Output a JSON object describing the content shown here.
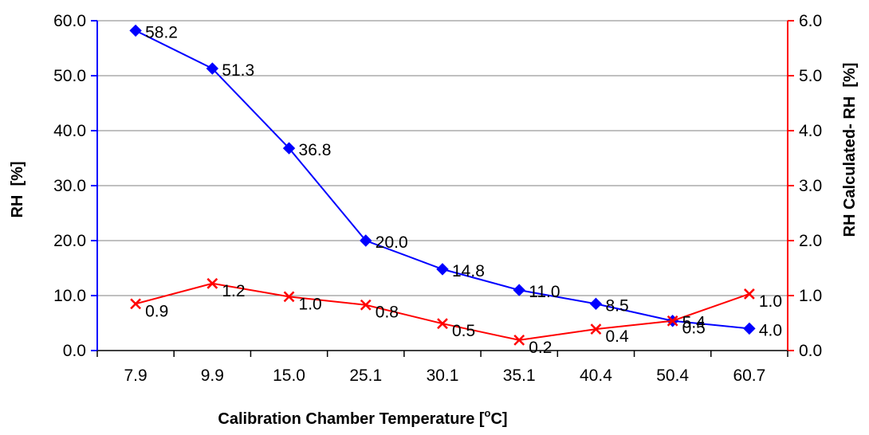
{
  "chart_data": {
    "type": "line",
    "categories": [
      "7.9",
      "9.9",
      "15.0",
      "25.1",
      "30.1",
      "35.1",
      "40.4",
      "50.4",
      "60.7"
    ],
    "series": [
      {
        "axis": "left",
        "color": "#0000ff",
        "marker": "diamond",
        "values": [
          58.2,
          51.3,
          36.8,
          20.0,
          14.8,
          11.0,
          8.5,
          5.4,
          4.0
        ],
        "labels": [
          "58.2",
          "51.3",
          "36.8",
          "20.0",
          "14.8",
          "11.0",
          "8.5",
          "5.4",
          "4.0"
        ]
      },
      {
        "axis": "right",
        "color": "#ff0000",
        "marker": "x",
        "values": [
          0.85,
          1.22,
          0.98,
          0.83,
          0.49,
          0.19,
          0.39,
          0.54,
          1.03
        ],
        "labels": [
          "0.9",
          "1.2",
          "1.0",
          "0.8",
          "0.5",
          "0.2",
          "0.4",
          "0.5",
          "1.0"
        ]
      }
    ],
    "xlabel": "Calibration Chamber Temperature [°C]",
    "xlabel_main": "Calibration Chamber Temperature [",
    "xlabel_sup": "o",
    "xlabel_end": "C]",
    "ylabel": "RH  [%]",
    "y2label": "RH Calculated- RH  [%]",
    "ylim": [
      0,
      60
    ],
    "y2lim": [
      0,
      6
    ],
    "yticks": [
      "0.0",
      "10.0",
      "20.0",
      "30.0",
      "40.0",
      "50.0",
      "60.0"
    ],
    "y2ticks": [
      "0.0",
      "1.0",
      "2.0",
      "3.0",
      "4.0",
      "5.0",
      "6.0"
    ],
    "grid": "horizontal",
    "legend": "none",
    "left_axis_color": "#0000ff",
    "right_axis_color": "#ff0000"
  }
}
